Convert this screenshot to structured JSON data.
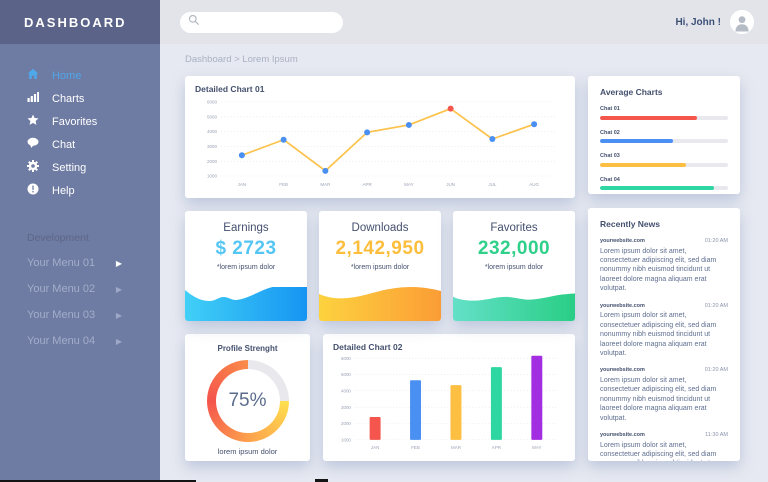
{
  "sidebar": {
    "title": "DASHBOARD",
    "items": [
      {
        "label": "Home",
        "icon": "home-icon",
        "active": true
      },
      {
        "label": "Charts",
        "icon": "bar-chart-icon",
        "active": false
      },
      {
        "label": "Favorites",
        "icon": "star-icon",
        "active": false
      },
      {
        "label": "Chat",
        "icon": "chat-icon",
        "active": false
      },
      {
        "label": "Setting",
        "icon": "gear-icon",
        "active": false
      },
      {
        "label": "Help",
        "icon": "help-icon",
        "active": false
      }
    ],
    "section_label": "Development",
    "dev_items": [
      {
        "label": "Your Menu 01"
      },
      {
        "label": "Your Menu 02"
      },
      {
        "label": "Your Menu 03"
      },
      {
        "label": "Your Menu 04"
      }
    ]
  },
  "topbar": {
    "greeting": "Hi, John !"
  },
  "breadcrumb": "Dashboard > Lorem Ipsum",
  "chart_data": [
    {
      "type": "line",
      "title": "Detailed Chart 01",
      "x": [
        "JAN",
        "FEB",
        "MAR",
        "APR",
        "MAY",
        "JUN",
        "JUL",
        "AUG"
      ],
      "values": [
        2400,
        3450,
        1350,
        3950,
        4450,
        5550,
        3500,
        4500
      ],
      "ylim": [
        1000,
        6000
      ],
      "yticks": [
        1000,
        2000,
        3000,
        4000,
        5000,
        6000
      ],
      "grid": "dotted",
      "legend": "none",
      "line_color": "#fcc24b",
      "point_color": "#4a8ff2",
      "highlight_index": 5,
      "highlight_color": "#f4564e"
    },
    {
      "type": "bar",
      "title": "Detailed Chart 02",
      "categories": [
        "JAN",
        "FEB",
        "MAR",
        "APR",
        "MAY"
      ],
      "values": [
        2400,
        4650,
        4350,
        5450,
        6150
      ],
      "bar_colors": [
        "#f4564e",
        "#4a8ff2",
        "#fcbf42",
        "#2ed6a2",
        "#a32ee1"
      ],
      "ylim": [
        1000,
        6000
      ],
      "yticks": [
        1000,
        2000,
        3000,
        4000,
        5000,
        6000
      ],
      "grid": "dotted",
      "legend": "none"
    },
    {
      "type": "donut",
      "title": "Profile Strenght",
      "value": 75,
      "label": "75%",
      "caption": "lorem ipsum dolor",
      "colors": [
        "#ffdf4e",
        "#fda04c",
        "#f4544c",
        "#fa8c49"
      ],
      "track_color": "#e9e9ed"
    },
    {
      "type": "progress",
      "title": "Average Charts",
      "track_color": "#e8e8ee",
      "items": [
        {
          "label": "Chat 01",
          "value": 76,
          "color": "#f4564e"
        },
        {
          "label": "Chat 02",
          "value": 57,
          "color": "#4a8ff2"
        },
        {
          "label": "Chat 03",
          "value": 67,
          "color": "#fcbf42"
        },
        {
          "label": "Chat 04",
          "value": 89,
          "color": "#2ed6a2"
        }
      ]
    }
  ],
  "stats": [
    {
      "title": "Earnings",
      "value": "$ 2723",
      "caption": "*lorem ipsum dolor",
      "value_color": "#55c6f4",
      "area_colors": [
        "#41d0f6",
        "#1695f2"
      ]
    },
    {
      "title": "Downloads",
      "value": "2,142,950",
      "caption": "*lorem ipsum dolor",
      "value_color": "#fcbe3c",
      "area_colors": [
        "#fdd23f",
        "#fb9d35"
      ]
    },
    {
      "title": "Favorites",
      "value": "232,000",
      "caption": "*lorem ipsum dolor",
      "value_color": "#2fd08a",
      "area_colors": [
        "#63e0c8",
        "#29ce85"
      ]
    }
  ],
  "news": {
    "title": "Recently News",
    "items": [
      {
        "source": "yourwebsite.com",
        "time": "01:20 AM",
        "text": "Lorem ipsum dolor sit amet, consectetuer adipiscing elit, sed diam nonummy nibh euismod tincidunt ut laoreet dolore magna aliquam erat volutpat."
      },
      {
        "source": "yourwebsite.com",
        "time": "01:20 AM",
        "text": "Lorem ipsum dolor sit amet, consectetuer adipiscing elit, sed diam nonummy nibh euismod tincidunt ut laoreet dolore magna aliquam erat volutpat."
      },
      {
        "source": "yourwebsite.com",
        "time": "01:20 AM",
        "text": "Lorem ipsum dolor sit amet, consectetuer adipiscing elit, sed diam nonummy nibh euismod tincidunt ut laoreet dolore magna aliquam erat volutpat."
      },
      {
        "source": "yourwebsite.com",
        "time": "11:30 AM",
        "text": "Lorem ipsum dolor sit amet, consectetuer adipiscing elit, sed diam nonummy nibh euismod tincidunt ut laoreet dolore magna aliquam erat volutpat."
      }
    ]
  }
}
